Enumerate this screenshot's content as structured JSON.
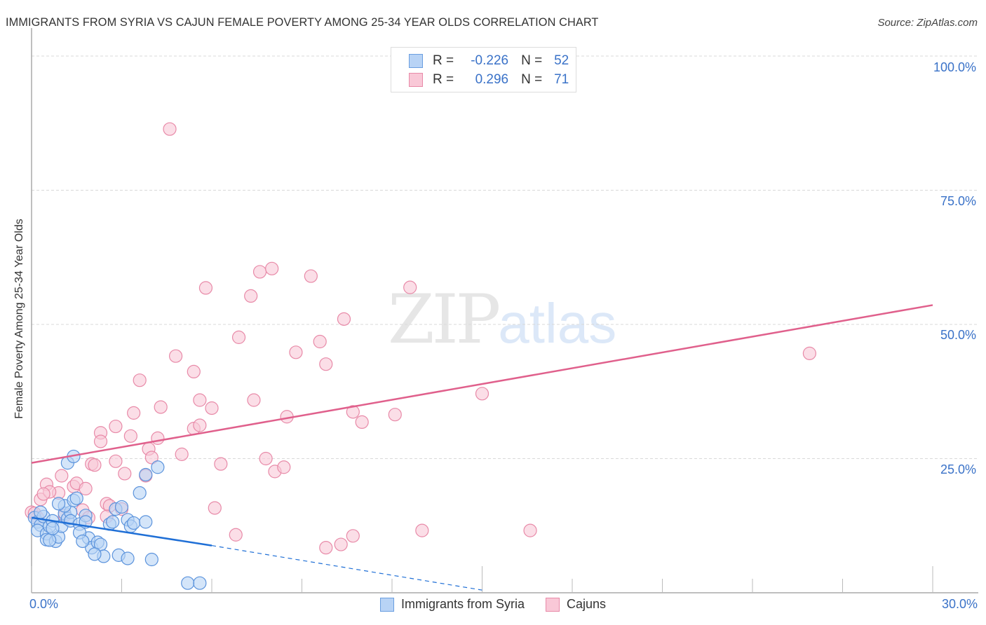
{
  "header": {
    "title": "IMMIGRANTS FROM SYRIA VS CAJUN FEMALE POVERTY AMONG 25-34 YEAR OLDS CORRELATION CHART",
    "source": "Source: ZipAtlas.com"
  },
  "watermark": {
    "zip": "ZIP",
    "atlas": "atlas"
  },
  "legend": {
    "series": [
      {
        "name": "Immigrants from Syria",
        "r_label": "R =",
        "r_value": "-0.226",
        "n_label": "N =",
        "n_value": "52",
        "fill": "#b8d3f5",
        "stroke": "#6a9ee0"
      },
      {
        "name": "Cajuns",
        "r_label": "R =",
        "r_value": "0.296",
        "n_label": "N =",
        "n_value": "71",
        "fill": "#f9c8d7",
        "stroke": "#e88aa8"
      }
    ]
  },
  "axes": {
    "y_label": "Female Poverty Among 25-34 Year Olds",
    "y_ticks": [
      "100.0%",
      "75.0%",
      "50.0%",
      "25.0%"
    ],
    "x_min_label": "0.0%",
    "x_max_label": "30.0%"
  },
  "colors": {
    "blue_fill": "#b8d3f5",
    "blue_stroke": "#5b93dc",
    "blue_line": "#1f6fd6",
    "pink_fill": "#f9c8d7",
    "pink_stroke": "#e88aa8",
    "pink_line": "#e0608c",
    "tick_label": "#3a72c8"
  },
  "chart_data": {
    "type": "scatter",
    "title": "IMMIGRANTS FROM SYRIA VS CAJUN FEMALE POVERTY AMONG 25-34 YEAR OLDS CORRELATION CHART",
    "xlabel": "",
    "ylabel": "Female Poverty Among 25-34 Year Olds",
    "xlim": [
      0,
      30
    ],
    "ylim": [
      0,
      100
    ],
    "x_ticks": [
      "0.0%",
      "30.0%"
    ],
    "y_ticks": [
      "25.0%",
      "50.0%",
      "75.0%",
      "100.0%"
    ],
    "grid": true,
    "legend_position": "top-center",
    "series": [
      {
        "name": "Immigrants from Syria",
        "R": -0.226,
        "N": 52,
        "trend": {
          "x": [
            0,
            6,
            15
          ],
          "y": [
            14.0,
            8.8,
            0.5
          ],
          "solid_until_x": 6
        },
        "points": [
          [
            0.1,
            14.0
          ],
          [
            0.2,
            13.2
          ],
          [
            0.3,
            12.6
          ],
          [
            0.4,
            14.2
          ],
          [
            0.2,
            11.6
          ],
          [
            0.5,
            11.0
          ],
          [
            0.6,
            12.4
          ],
          [
            0.7,
            13.4
          ],
          [
            0.5,
            9.9
          ],
          [
            0.8,
            9.6
          ],
          [
            0.9,
            10.4
          ],
          [
            0.6,
            9.8
          ],
          [
            1.0,
            12.4
          ],
          [
            1.1,
            14.8
          ],
          [
            1.2,
            13.8
          ],
          [
            1.3,
            15.0
          ],
          [
            1.1,
            16.2
          ],
          [
            1.4,
            17.2
          ],
          [
            1.5,
            17.6
          ],
          [
            1.3,
            13.4
          ],
          [
            1.6,
            12.8
          ],
          [
            1.8,
            14.4
          ],
          [
            1.9,
            10.2
          ],
          [
            2.0,
            8.4
          ],
          [
            2.2,
            9.4
          ],
          [
            2.3,
            9.0
          ],
          [
            2.4,
            6.8
          ],
          [
            1.6,
            11.2
          ],
          [
            1.7,
            9.6
          ],
          [
            2.1,
            7.2
          ],
          [
            2.6,
            12.8
          ],
          [
            2.7,
            13.2
          ],
          [
            2.8,
            15.6
          ],
          [
            3.0,
            16.0
          ],
          [
            3.2,
            13.6
          ],
          [
            3.3,
            12.4
          ],
          [
            3.4,
            13.0
          ],
          [
            2.9,
            7.0
          ],
          [
            3.6,
            18.6
          ],
          [
            3.8,
            13.2
          ],
          [
            1.2,
            24.2
          ],
          [
            1.4,
            25.4
          ],
          [
            3.8,
            22.0
          ],
          [
            4.2,
            23.4
          ],
          [
            3.2,
            6.4
          ],
          [
            4.0,
            6.2
          ],
          [
            5.2,
            1.8
          ],
          [
            5.6,
            1.8
          ],
          [
            0.9,
            16.6
          ],
          [
            1.8,
            13.2
          ],
          [
            0.3,
            15.0
          ],
          [
            0.7,
            12.0
          ]
        ]
      },
      {
        "name": "Cajuns",
        "R": 0.296,
        "N": 71,
        "trend": {
          "x": [
            0,
            30
          ],
          "y": [
            24.2,
            53.6
          ]
        },
        "points": [
          [
            4.6,
            86.4
          ],
          [
            5.8,
            56.8
          ],
          [
            7.3,
            55.3
          ],
          [
            7.6,
            59.8
          ],
          [
            8.0,
            60.4
          ],
          [
            9.3,
            59.0
          ],
          [
            10.4,
            51.0
          ],
          [
            12.6,
            56.9
          ],
          [
            6.9,
            47.6
          ],
          [
            8.8,
            44.8
          ],
          [
            9.6,
            46.8
          ],
          [
            9.8,
            42.6
          ],
          [
            4.8,
            44.1
          ],
          [
            5.4,
            41.2
          ],
          [
            3.6,
            39.6
          ],
          [
            4.3,
            34.6
          ],
          [
            5.6,
            35.9
          ],
          [
            6.0,
            34.4
          ],
          [
            7.4,
            35.9
          ],
          [
            8.5,
            32.8
          ],
          [
            10.7,
            33.7
          ],
          [
            11.0,
            31.8
          ],
          [
            12.1,
            33.2
          ],
          [
            15.0,
            37.1
          ],
          [
            25.9,
            44.6
          ],
          [
            3.4,
            33.5
          ],
          [
            2.8,
            31.0
          ],
          [
            3.3,
            29.2
          ],
          [
            4.2,
            28.8
          ],
          [
            5.4,
            30.6
          ],
          [
            5.6,
            31.2
          ],
          [
            2.3,
            29.8
          ],
          [
            2.3,
            28.2
          ],
          [
            3.9,
            26.8
          ],
          [
            5.0,
            25.8
          ],
          [
            4.0,
            25.2
          ],
          [
            2.0,
            24.0
          ],
          [
            2.1,
            23.8
          ],
          [
            2.8,
            24.5
          ],
          [
            6.3,
            24.0
          ],
          [
            7.8,
            25.0
          ],
          [
            8.1,
            22.6
          ],
          [
            8.4,
            23.4
          ],
          [
            3.1,
            22.2
          ],
          [
            3.8,
            21.8
          ],
          [
            1.0,
            21.8
          ],
          [
            1.4,
            19.8
          ],
          [
            0.5,
            20.2
          ],
          [
            0.9,
            18.6
          ],
          [
            1.5,
            20.4
          ],
          [
            1.8,
            19.4
          ],
          [
            1.7,
            15.4
          ],
          [
            2.5,
            16.6
          ],
          [
            2.6,
            16.2
          ],
          [
            3.0,
            15.6
          ],
          [
            2.5,
            14.2
          ],
          [
            6.1,
            15.8
          ],
          [
            6.8,
            10.8
          ],
          [
            9.8,
            8.4
          ],
          [
            10.3,
            9.0
          ],
          [
            10.7,
            10.6
          ],
          [
            13.0,
            11.6
          ],
          [
            16.6,
            11.6
          ],
          [
            0.0,
            15.0
          ],
          [
            0.3,
            17.4
          ],
          [
            0.6,
            18.8
          ],
          [
            0.2,
            14.0
          ],
          [
            1.1,
            14.4
          ],
          [
            0.1,
            14.8
          ],
          [
            1.9,
            14.0
          ],
          [
            0.4,
            18.4
          ]
        ]
      }
    ]
  }
}
